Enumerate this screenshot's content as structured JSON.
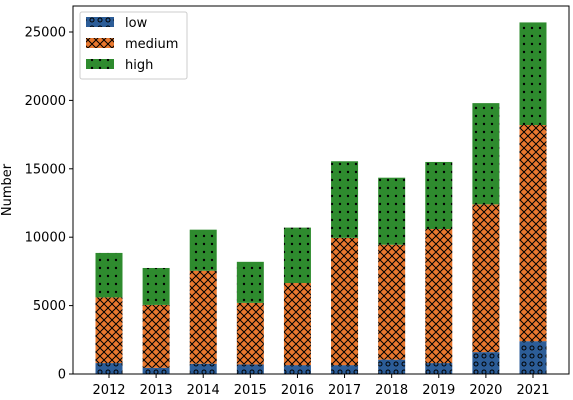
{
  "chart_data": {
    "type": "bar",
    "stacked": true,
    "categories": [
      "2012",
      "2013",
      "2014",
      "2015",
      "2016",
      "2017",
      "2018",
      "2019",
      "2020",
      "2021"
    ],
    "series": [
      {
        "name": "low",
        "color": "#2c5d98",
        "hatch": "circles",
        "values": [
          800,
          450,
          750,
          700,
          650,
          650,
          1050,
          800,
          1600,
          2400
        ]
      },
      {
        "name": "medium",
        "color": "#e8772e",
        "hatch": "crosshatch",
        "values": [
          4800,
          4600,
          6800,
          4500,
          6000,
          9300,
          8400,
          9800,
          10800,
          15800
        ]
      },
      {
        "name": "high",
        "color": "#2e8b2e",
        "hatch": "dots",
        "values": [
          3250,
          2700,
          3000,
          3000,
          4050,
          5600,
          4900,
          4900,
          7400,
          7500
        ]
      }
    ],
    "title": "",
    "xlabel": "",
    "ylabel": "Number",
    "ylim": [
      0,
      26900
    ],
    "yticks": [
      0,
      5000,
      10000,
      15000,
      20000,
      25000
    ],
    "grid": false,
    "legend_position": "top-left"
  }
}
